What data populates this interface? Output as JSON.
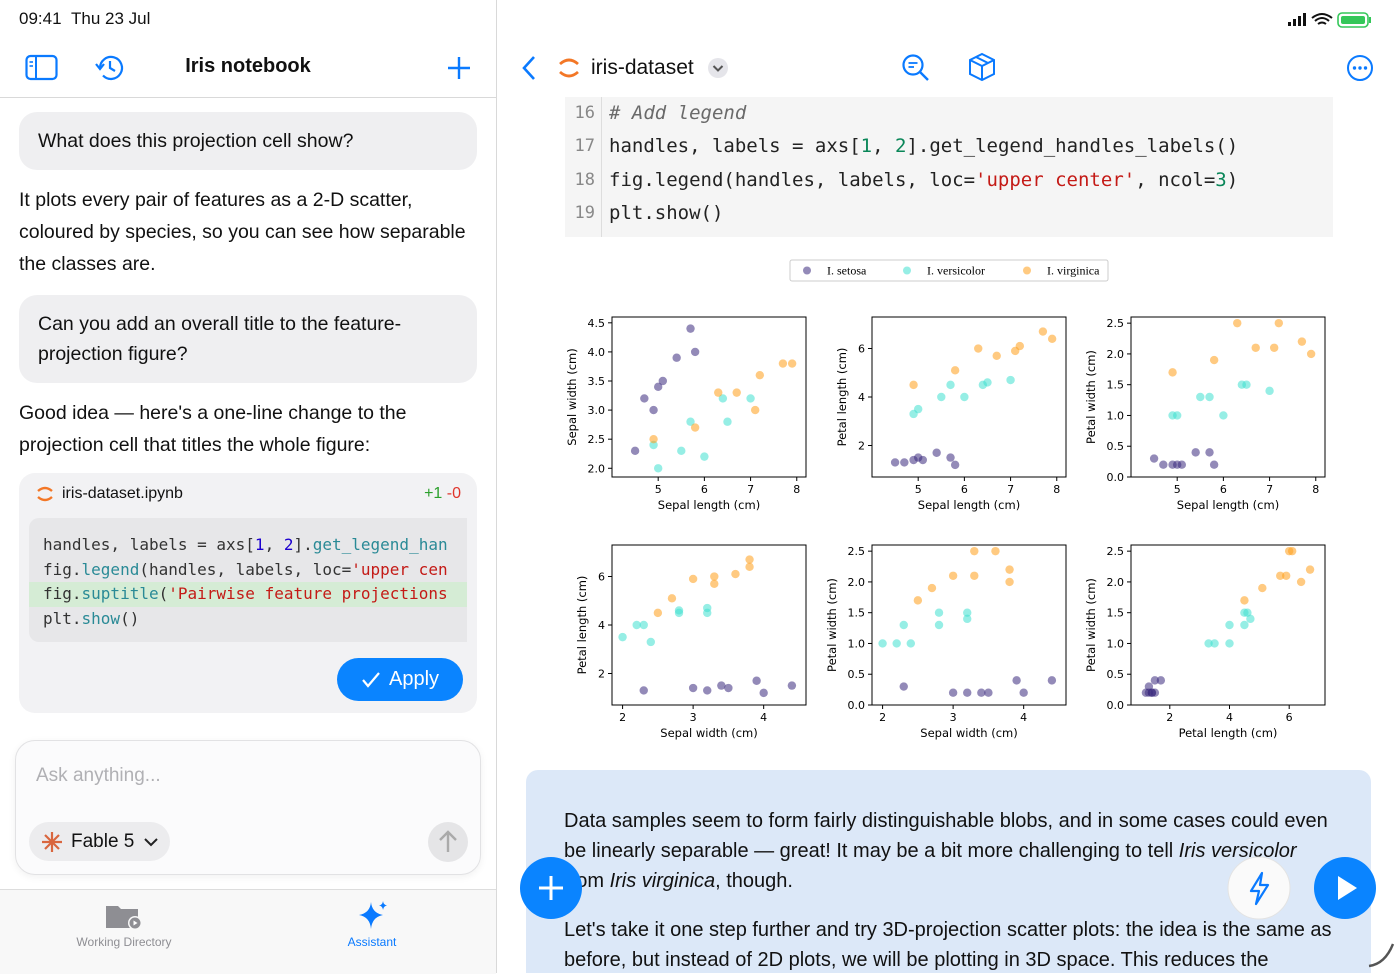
{
  "status": {
    "time": "09:41",
    "date": "Thu 23 Jul"
  },
  "sidebar": {
    "title": "Iris notebook",
    "messages": [
      {
        "role": "user",
        "text": "What does this projection cell show?"
      },
      {
        "role": "assistant",
        "text": "It plots every pair of features as a 2-D scatter, coloured by species, so you can see how separable the classes are."
      },
      {
        "role": "user",
        "text": "Can you add an overall title to the feature-projection figure?"
      },
      {
        "role": "assistant",
        "text": "Good idea — here's a one-line change to the projection cell that titles the whole figure:"
      }
    ],
    "change": {
      "file": "iris-dataset.ipynb",
      "added": "+1",
      "removed": "-0",
      "lines": [
        {
          "segments": [
            {
              "text": "handles, labels = axs["
            },
            {
              "text": "1",
              "color": "#1c00cf"
            },
            {
              "text": ", "
            },
            {
              "text": "2",
              "color": "#1c00cf"
            },
            {
              "text": "]."
            },
            {
              "text": "get_legend_han",
              "color": "#2a8a96"
            }
          ]
        },
        {
          "segments": [
            {
              "text": "fig."
            },
            {
              "text": "legend",
              "color": "#2a8a96"
            },
            {
              "text": "(handles, labels, loc="
            },
            {
              "text": "'upper cen",
              "color": "#c41a16"
            }
          ]
        },
        {
          "segments": [
            {
              "text": "fig."
            },
            {
              "text": "suptitle",
              "color": "#2a8a96"
            },
            {
              "text": "("
            },
            {
              "text": "'Pairwise feature projections",
              "color": "#c41a16"
            }
          ],
          "added": true
        },
        {
          "segments": [
            {
              "text": "plt."
            },
            {
              "text": "show",
              "color": "#2a8a96"
            },
            {
              "text": "()"
            }
          ]
        }
      ],
      "apply": "Apply"
    },
    "input": {
      "placeholder": "Ask anything...",
      "model": "Fable 5"
    },
    "tabs": [
      "Working Directory",
      "Assistant"
    ]
  },
  "notebook": {
    "title": "iris-dataset",
    "code": [
      {
        "number": 16,
        "segments": [
          {
            "text": "# Add legend",
            "color": "#6a6a6a",
            "italic": true
          }
        ]
      },
      {
        "number": 17,
        "segments": [
          {
            "text": "handles, labels = axs["
          },
          {
            "text": "1",
            "color": "#098658"
          },
          {
            "text": ", "
          },
          {
            "text": "2",
            "color": "#098658"
          },
          {
            "text": "].get_legend_handles_labels()"
          }
        ]
      },
      {
        "number": 18,
        "segments": [
          {
            "text": "fig.legend(handles, labels, loc="
          },
          {
            "text": "'upper center'",
            "color": "#c41a16"
          },
          {
            "text": ", ncol="
          },
          {
            "text": "3",
            "color": "#098658"
          },
          {
            "text": ")"
          }
        ]
      },
      {
        "number": 19,
        "segments": [
          {
            "text": "plt.show()"
          }
        ]
      }
    ],
    "markdown": [
      [
        {
          "text": "Data samples seem to form fairly distinguishable blobs, and in some cases could even be linearly separable — great! It may be a bit more challenging to tell "
        },
        {
          "text": "Iris versicolor",
          "italic": true
        },
        {
          "text": " from "
        },
        {
          "text": "Iris virginica",
          "italic": true
        },
        {
          "text": ", though."
        }
      ],
      [
        {
          "text": "Let's take it one step further and try 3D-projection scatter plots: the idea is the same as before, but instead of 2D plots, we will be plotting in 3D space. This reduces the"
        }
      ]
    ]
  },
  "chart_data": [
    {
      "type": "scatter",
      "xlabel": "Sepal length (cm)",
      "ylabel": "Sepal width (cm)",
      "xlim": [
        4.0,
        8.2
      ],
      "ylim": [
        1.85,
        4.6
      ],
      "xticks": [
        5,
        6,
        7,
        8
      ],
      "yticks": [
        {
          "value": 2,
          "label": "2.0"
        },
        2.5,
        {
          "value": 3,
          "label": "3.0"
        },
        3.5,
        {
          "value": 4,
          "label": "4.0"
        },
        4.5
      ],
      "series": [
        {
          "name": "I. setosa",
          "color": "#3b2a7e",
          "x": [
            5.1,
            4.9,
            4.7,
            5.4,
            5.0,
            5.8,
            4.5,
            5.7
          ],
          "y": [
            3.5,
            3.0,
            3.2,
            3.9,
            3.4,
            4.0,
            2.3,
            4.4
          ]
        },
        {
          "name": "I. versicolor",
          "color": "#40e0d0",
          "x": [
            7.0,
            6.4,
            5.5,
            6.5,
            5.7,
            4.9,
            6.0,
            5.0
          ],
          "y": [
            3.2,
            3.2,
            2.3,
            2.8,
            2.8,
            2.4,
            2.2,
            2.0
          ]
        },
        {
          "name": "I. virginica",
          "color": "#ff9f1a",
          "x": [
            6.3,
            5.8,
            7.1,
            7.7,
            4.9,
            7.2,
            6.7,
            7.9
          ],
          "y": [
            3.3,
            2.7,
            3.0,
            3.8,
            2.5,
            3.6,
            3.3,
            3.8
          ]
        }
      ]
    },
    {
      "type": "scatter",
      "xlabel": "Sepal length (cm)",
      "ylabel": "Petal length (cm)",
      "xlim": [
        4.0,
        8.2
      ],
      "ylim": [
        0.7,
        7.3
      ],
      "xticks": [
        5,
        6,
        7,
        8
      ],
      "yticks": [
        2,
        4,
        6
      ],
      "series": [
        {
          "name": "I. setosa",
          "color": "#3b2a7e",
          "x": [
            5.1,
            4.9,
            4.7,
            5.4,
            5.0,
            5.8,
            4.5,
            5.7
          ],
          "y": [
            1.4,
            1.4,
            1.3,
            1.7,
            1.5,
            1.2,
            1.3,
            1.5
          ]
        },
        {
          "name": "I. versicolor",
          "color": "#40e0d0",
          "x": [
            7.0,
            6.4,
            5.5,
            6.5,
            5.7,
            4.9,
            6.0,
            5.0
          ],
          "y": [
            4.7,
            4.5,
            4.0,
            4.6,
            4.5,
            3.3,
            4.0,
            3.5
          ]
        },
        {
          "name": "I. virginica",
          "color": "#ff9f1a",
          "x": [
            6.3,
            5.8,
            7.1,
            7.7,
            4.9,
            7.2,
            6.7,
            7.9
          ],
          "y": [
            6.0,
            5.1,
            5.9,
            6.7,
            4.5,
            6.1,
            5.7,
            6.4
          ]
        }
      ]
    },
    {
      "type": "scatter",
      "xlabel": "Sepal length (cm)",
      "ylabel": "Petal width (cm)",
      "xlim": [
        4.0,
        8.2
      ],
      "ylim": [
        0,
        2.6
      ],
      "xticks": [
        5,
        6,
        7,
        8
      ],
      "yticks": [
        {
          "value": 0,
          "label": "0.0"
        },
        0.5,
        {
          "value": 1,
          "label": "1.0"
        },
        1.5,
        {
          "value": 2,
          "label": "2.0"
        },
        2.5
      ],
      "series": [
        {
          "name": "I. setosa",
          "color": "#3b2a7e",
          "x": [
            5.1,
            4.9,
            4.7,
            5.4,
            5.0,
            5.8,
            4.5,
            5.7
          ],
          "y": [
            0.2,
            0.2,
            0.2,
            0.4,
            0.2,
            0.2,
            0.3,
            0.4
          ]
        },
        {
          "name": "I. versicolor",
          "color": "#40e0d0",
          "x": [
            7.0,
            6.4,
            5.5,
            6.5,
            5.7,
            4.9,
            6.0,
            5.0
          ],
          "y": [
            1.4,
            1.5,
            1.3,
            1.5,
            1.3,
            1.0,
            1.0,
            1.0
          ]
        },
        {
          "name": "I. virginica",
          "color": "#ff9f1a",
          "x": [
            6.3,
            5.8,
            7.1,
            7.7,
            4.9,
            7.2,
            6.7,
            7.9
          ],
          "y": [
            2.5,
            1.9,
            2.1,
            2.2,
            1.7,
            2.5,
            2.1,
            2.0
          ]
        }
      ]
    },
    {
      "type": "scatter",
      "xlabel": "Sepal width (cm)",
      "ylabel": "Petal length (cm)",
      "xlim": [
        1.85,
        4.6
      ],
      "ylim": [
        0.7,
        7.3
      ],
      "xticks": [
        2,
        3,
        4
      ],
      "yticks": [
        2,
        4,
        6
      ],
      "series": [
        {
          "name": "I. setosa",
          "color": "#3b2a7e",
          "x": [
            3.5,
            3.0,
            3.2,
            3.9,
            3.4,
            4.0,
            2.3,
            4.4
          ],
          "y": [
            1.4,
            1.4,
            1.3,
            1.7,
            1.5,
            1.2,
            1.3,
            1.5
          ]
        },
        {
          "name": "I. versicolor",
          "color": "#40e0d0",
          "x": [
            3.2,
            3.2,
            2.3,
            2.8,
            2.8,
            2.4,
            2.2,
            2.0
          ],
          "y": [
            4.7,
            4.5,
            4.0,
            4.6,
            4.5,
            3.3,
            4.0,
            3.5
          ]
        },
        {
          "name": "I. virginica",
          "color": "#ff9f1a",
          "x": [
            3.3,
            2.7,
            3.0,
            3.8,
            2.5,
            3.6,
            3.3,
            3.8
          ],
          "y": [
            6.0,
            5.1,
            5.9,
            6.7,
            4.5,
            6.1,
            5.7,
            6.4
          ]
        }
      ]
    },
    {
      "type": "scatter",
      "xlabel": "Sepal width (cm)",
      "ylabel": "Petal width (cm)",
      "xlim": [
        1.85,
        4.6
      ],
      "ylim": [
        0,
        2.6
      ],
      "xticks": [
        2,
        3,
        4
      ],
      "yticks": [
        {
          "value": 0,
          "label": "0.0"
        },
        0.5,
        {
          "value": 1,
          "label": "1.0"
        },
        1.5,
        {
          "value": 2,
          "label": "2.0"
        },
        2.5
      ],
      "series": [
        {
          "name": "I. setosa",
          "color": "#3b2a7e",
          "x": [
            3.5,
            3.0,
            3.2,
            3.9,
            3.4,
            4.0,
            2.3,
            4.4
          ],
          "y": [
            0.2,
            0.2,
            0.2,
            0.4,
            0.2,
            0.2,
            0.3,
            0.4
          ]
        },
        {
          "name": "I. versicolor",
          "color": "#40e0d0",
          "x": [
            3.2,
            3.2,
            2.3,
            2.8,
            2.8,
            2.4,
            2.2,
            2.0
          ],
          "y": [
            1.4,
            1.5,
            1.3,
            1.5,
            1.3,
            1.0,
            1.0,
            1.0
          ]
        },
        {
          "name": "I. virginica",
          "color": "#ff9f1a",
          "x": [
            3.3,
            2.7,
            3.0,
            3.8,
            2.5,
            3.6,
            3.3,
            3.8
          ],
          "y": [
            2.5,
            1.9,
            2.1,
            2.2,
            1.7,
            2.5,
            2.1,
            2.0
          ]
        }
      ]
    },
    {
      "type": "scatter",
      "xlabel": "Petal length (cm)",
      "ylabel": "Petal width (cm)",
      "xlim": [
        0.7,
        7.2
      ],
      "ylim": [
        0,
        2.6
      ],
      "xticks": [
        2,
        4,
        6
      ],
      "yticks": [
        {
          "value": 0,
          "label": "0.0"
        },
        0.5,
        {
          "value": 1,
          "label": "1.0"
        },
        1.5,
        {
          "value": 2,
          "label": "2.0"
        },
        2.5
      ],
      "series": [
        {
          "name": "I. setosa",
          "color": "#3b2a7e",
          "x": [
            1.4,
            1.4,
            1.3,
            1.7,
            1.5,
            1.2,
            1.3,
            1.5
          ],
          "y": [
            0.2,
            0.2,
            0.2,
            0.4,
            0.2,
            0.2,
            0.3,
            0.4
          ]
        },
        {
          "name": "I. versicolor",
          "color": "#40e0d0",
          "x": [
            4.7,
            4.5,
            4.0,
            4.6,
            4.5,
            3.3,
            4.0,
            3.5
          ],
          "y": [
            1.4,
            1.5,
            1.3,
            1.5,
            1.3,
            1.0,
            1.0,
            1.0
          ]
        },
        {
          "name": "I. virginica",
          "color": "#ff9f1a",
          "x": [
            6.0,
            5.1,
            5.9,
            6.7,
            4.5,
            6.1,
            5.7,
            6.4
          ],
          "y": [
            2.5,
            1.9,
            2.1,
            2.2,
            1.7,
            2.5,
            2.1,
            2.0
          ]
        }
      ]
    }
  ]
}
